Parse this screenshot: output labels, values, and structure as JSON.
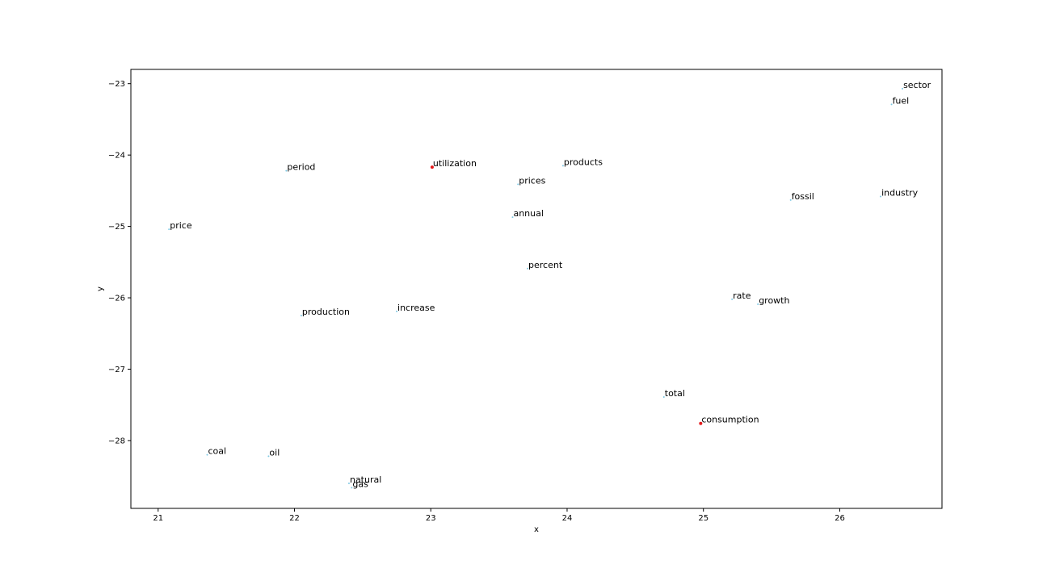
{
  "chart_data": {
    "type": "scatter",
    "title": "",
    "xlabel": "x",
    "ylabel": "y",
    "xlim": [
      20.8,
      26.75
    ],
    "ylim": [
      -28.95,
      -22.8
    ],
    "xticks": [
      21,
      22,
      23,
      24,
      25,
      26
    ],
    "yticks": [
      -23,
      -24,
      -25,
      -26,
      -27,
      -28
    ],
    "xtick_labels": [
      "21",
      "22",
      "23",
      "24",
      "25",
      "26"
    ],
    "ytick_labels": [
      "−23",
      "−24",
      "−25",
      "−26",
      "−27",
      "−28"
    ],
    "grid": false,
    "colors": {
      "default_point": "#7ec8e3",
      "highlight_point": "#e41a1c"
    },
    "points": [
      {
        "label": "sector",
        "x": 26.46,
        "y": -23.07,
        "highlight": false
      },
      {
        "label": "fuel",
        "x": 26.38,
        "y": -23.29,
        "highlight": false
      },
      {
        "label": "period",
        "x": 21.94,
        "y": -24.22,
        "highlight": false
      },
      {
        "label": "utilization",
        "x": 23.01,
        "y": -24.17,
        "highlight": true
      },
      {
        "label": "products",
        "x": 23.97,
        "y": -24.15,
        "highlight": false
      },
      {
        "label": "prices",
        "x": 23.64,
        "y": -24.41,
        "highlight": false
      },
      {
        "label": "fossil",
        "x": 25.64,
        "y": -24.63,
        "highlight": false
      },
      {
        "label": "industry",
        "x": 26.3,
        "y": -24.58,
        "highlight": false
      },
      {
        "label": "price",
        "x": 21.08,
        "y": -25.04,
        "highlight": false
      },
      {
        "label": "annual",
        "x": 23.6,
        "y": -24.87,
        "highlight": false
      },
      {
        "label": "percent",
        "x": 23.71,
        "y": -25.59,
        "highlight": false
      },
      {
        "label": "rate",
        "x": 25.21,
        "y": -26.02,
        "highlight": false
      },
      {
        "label": "growth",
        "x": 25.4,
        "y": -26.09,
        "highlight": false
      },
      {
        "label": "production",
        "x": 22.05,
        "y": -26.25,
        "highlight": false
      },
      {
        "label": "increase",
        "x": 22.75,
        "y": -26.19,
        "highlight": false
      },
      {
        "label": "total",
        "x": 24.71,
        "y": -27.39,
        "highlight": false
      },
      {
        "label": "consumption",
        "x": 24.98,
        "y": -27.76,
        "highlight": true
      },
      {
        "label": "coal",
        "x": 21.36,
        "y": -28.2,
        "highlight": false
      },
      {
        "label": "oil",
        "x": 21.81,
        "y": -28.22,
        "highlight": false
      },
      {
        "label": "natural",
        "x": 22.4,
        "y": -28.6,
        "highlight": false
      },
      {
        "label": "gas",
        "x": 22.42,
        "y": -28.66,
        "highlight": false
      }
    ]
  }
}
